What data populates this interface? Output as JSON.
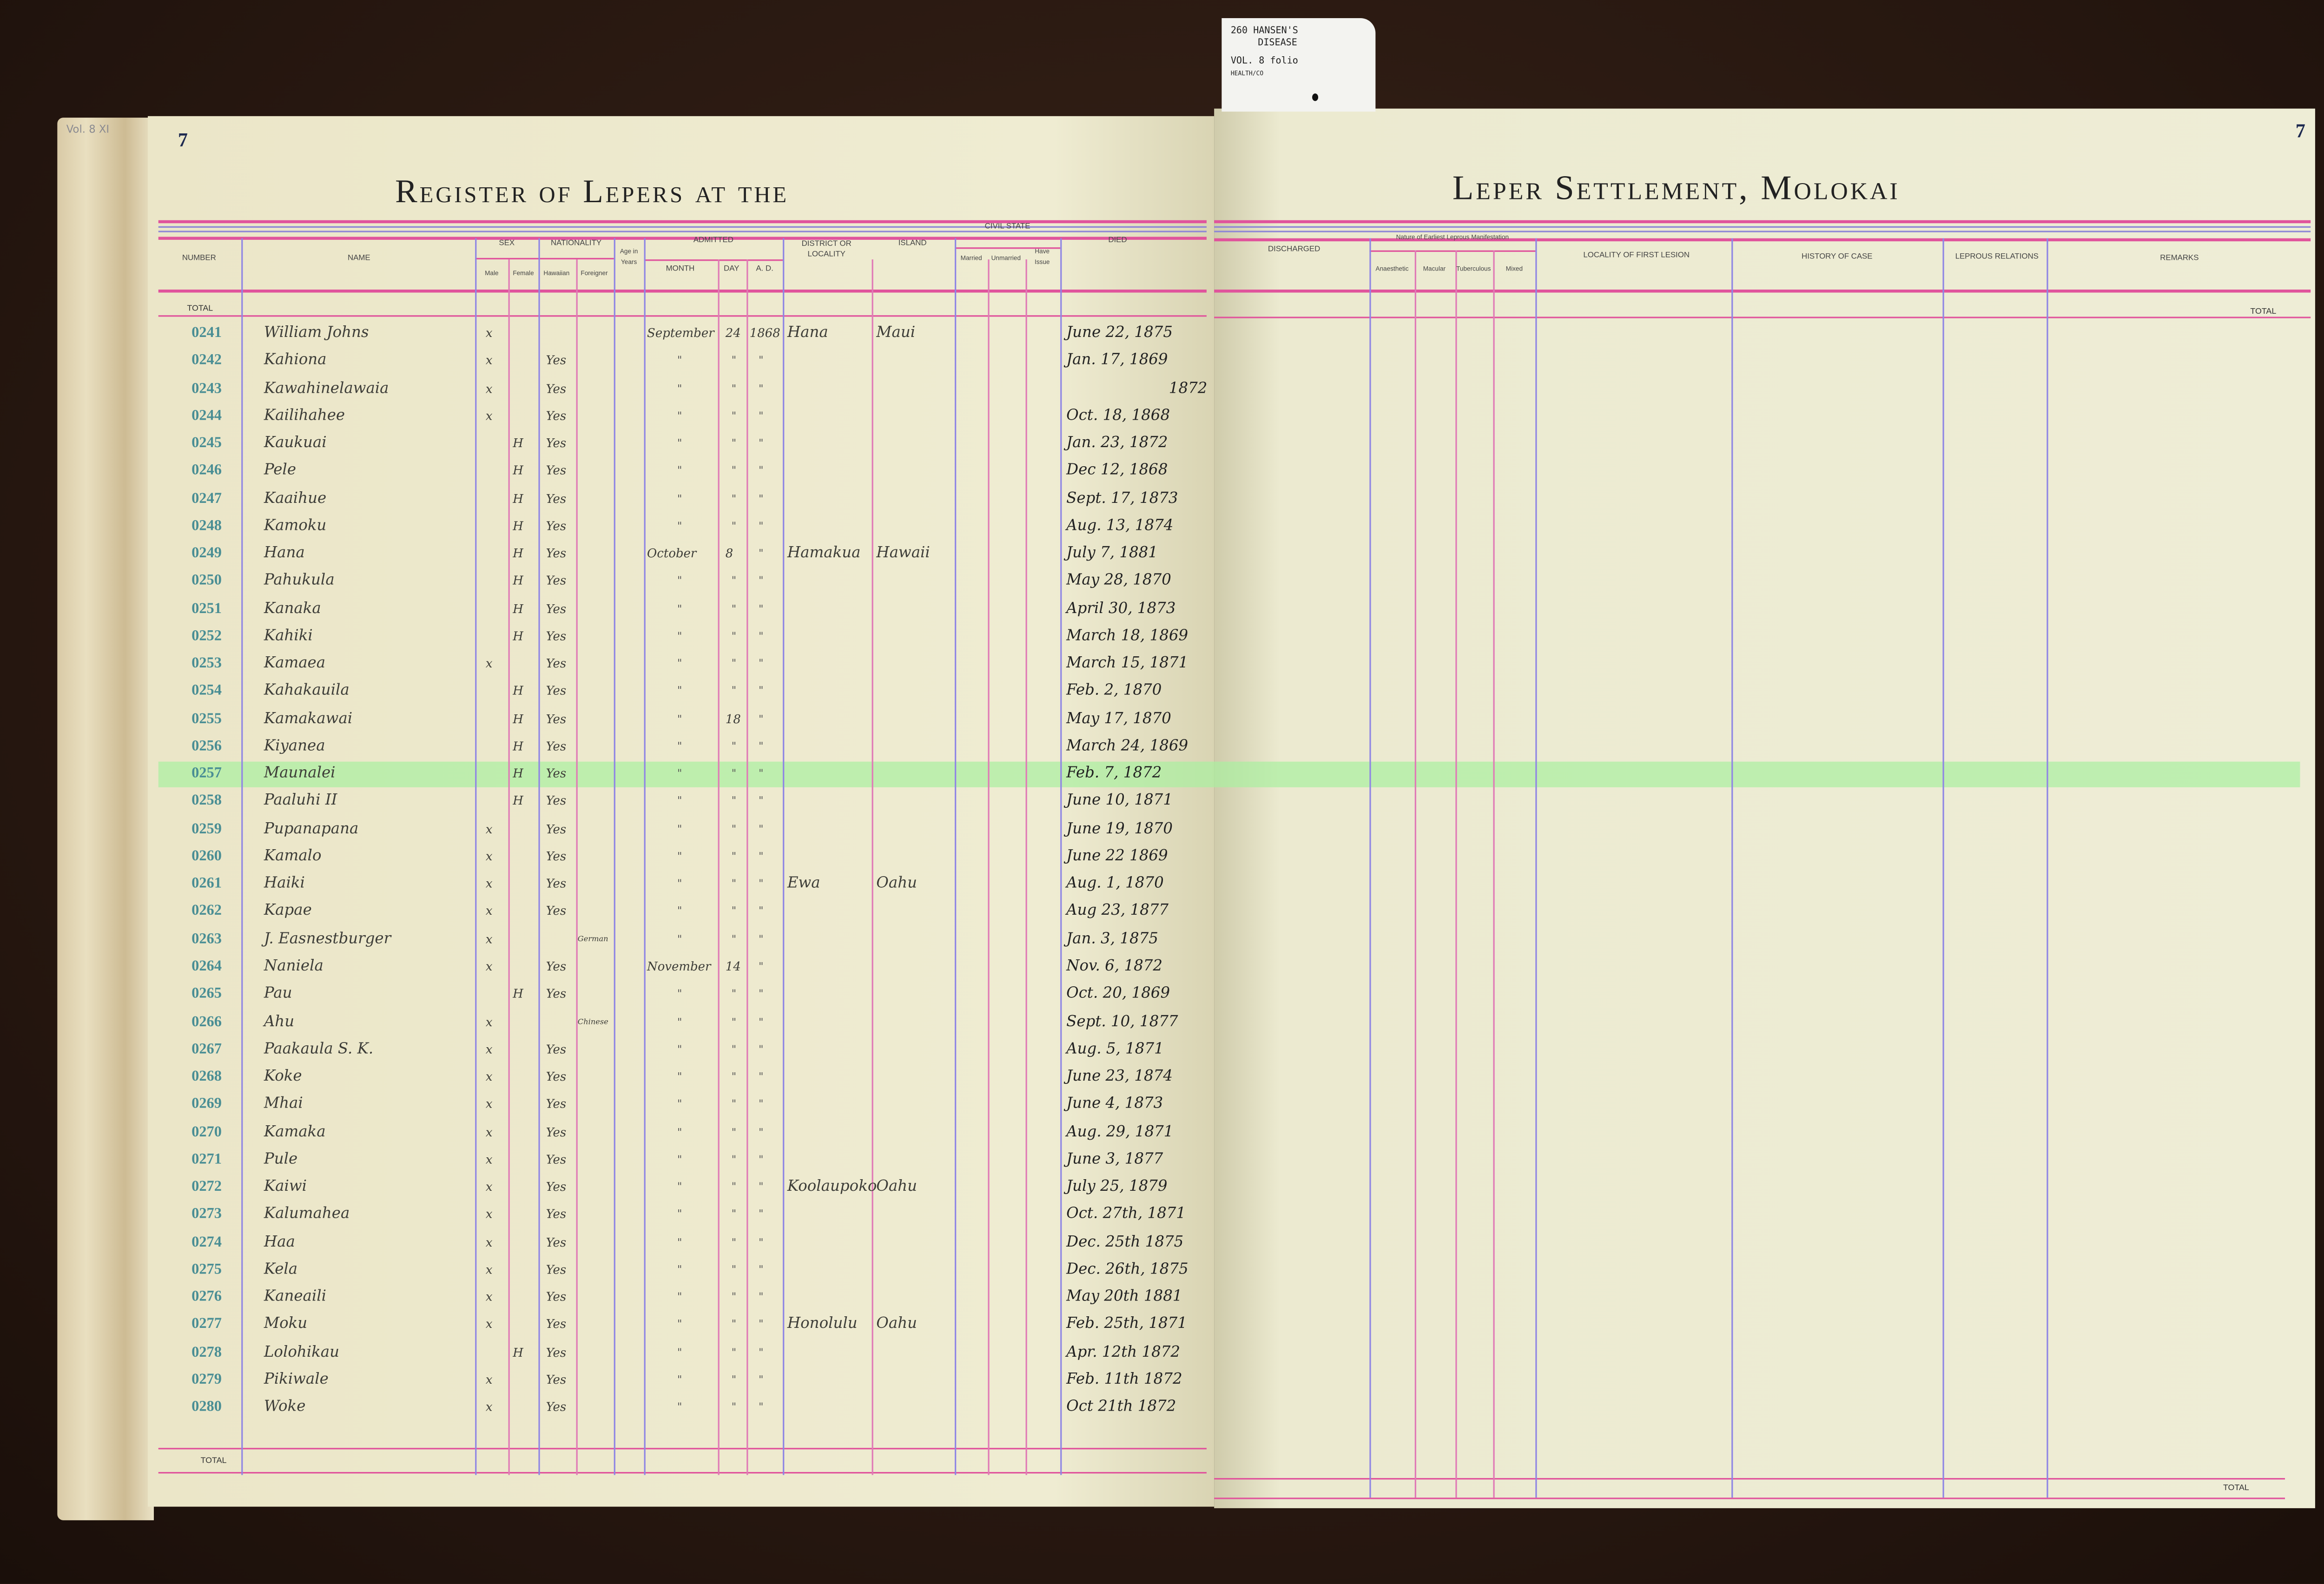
{
  "tab_card": {
    "line1": "260 HANSEN'S",
    "line2": "DISEASE",
    "line3": "VOL. 8 folio",
    "line4": "HEALTH/CO"
  },
  "pencil_note": "Vol. 8 XI",
  "left_page": {
    "page_number": "7",
    "title": "Register of Lepers at the",
    "headers": {
      "number": "Number",
      "name": "Name",
      "sex": "Sex",
      "male": "Male",
      "female": "Female",
      "nationality": "Nationality",
      "hawaiian": "Hawaiian",
      "foreigner": "Foreigner",
      "age": "Age in Years",
      "admitted": "Admitted",
      "month": "Month",
      "day": "Day",
      "ad": "A. D.",
      "district": "District or Locality",
      "island": "Island",
      "civil_state": "Civil State",
      "married": "Married",
      "unmarried": "Unmarried",
      "have_issue": "Have Issue",
      "died": "Died"
    },
    "total_label": "TOTAL",
    "footer_total_label": "TOTAL"
  },
  "right_page": {
    "page_number": "7",
    "title": "Leper Settlement, Molokai",
    "headers": {
      "discharged": "Discharged",
      "nature": "Nature of Earliest Leprous Manifestation",
      "anaesthetic": "Anaesthetic",
      "macular": "Macular",
      "tubercular": "Tuberculous",
      "mixed": "Mixed",
      "locality": "Locality of First Lesion",
      "history": "History of Case",
      "relations": "Leprous Relations",
      "remarks": "Remarks"
    },
    "total_label": "TOTAL",
    "footer_total_label": "TOTAL"
  },
  "highlight_color": "#aaf0a0",
  "highlighted_row": "0257",
  "rows": [
    {
      "number": "0241",
      "name": "William Johns",
      "male": "x",
      "female": "",
      "hawaiian": "",
      "foreigner": "",
      "month": "September",
      "day": "24",
      "ad": "1868",
      "district": "Hana",
      "island": "Maui",
      "died": "June 22, 1875"
    },
    {
      "number": "0242",
      "name": "Kahiona",
      "male": "x",
      "female": "",
      "hawaiian": "Yes",
      "foreigner": "",
      "month": "\"",
      "day": "\"",
      "ad": "\"",
      "district": "",
      "island": "",
      "died": "Jan. 17, 1869"
    },
    {
      "number": "0243",
      "name": "Kawahinelawaia",
      "male": "x",
      "female": "",
      "hawaiian": "Yes",
      "foreigner": "",
      "month": "\"",
      "day": "\"",
      "ad": "\"",
      "district": "",
      "island": "",
      "died": "1872"
    },
    {
      "number": "0244",
      "name": "Kailihahee",
      "male": "x",
      "female": "",
      "hawaiian": "Yes",
      "foreigner": "",
      "month": "\"",
      "day": "\"",
      "ad": "\"",
      "district": "",
      "island": "",
      "died": "Oct. 18, 1868"
    },
    {
      "number": "0245",
      "name": "Kaukuai",
      "male": "",
      "female": "H",
      "hawaiian": "Yes",
      "foreigner": "",
      "month": "\"",
      "day": "\"",
      "ad": "\"",
      "district": "",
      "island": "",
      "died": "Jan. 23, 1872"
    },
    {
      "number": "0246",
      "name": "Pele",
      "male": "",
      "female": "H",
      "hawaiian": "Yes",
      "foreigner": "",
      "month": "\"",
      "day": "\"",
      "ad": "\"",
      "district": "",
      "island": "",
      "died": "Dec 12, 1868"
    },
    {
      "number": "0247",
      "name": "Kaaihue",
      "male": "",
      "female": "H",
      "hawaiian": "Yes",
      "foreigner": "",
      "month": "\"",
      "day": "\"",
      "ad": "\"",
      "district": "",
      "island": "",
      "died": "Sept. 17, 1873"
    },
    {
      "number": "0248",
      "name": "Kamoku",
      "male": "",
      "female": "H",
      "hawaiian": "Yes",
      "foreigner": "",
      "month": "\"",
      "day": "\"",
      "ad": "\"",
      "district": "",
      "island": "",
      "died": "Aug. 13, 1874"
    },
    {
      "number": "0249",
      "name": "Hana",
      "male": "",
      "female": "H",
      "hawaiian": "Yes",
      "foreigner": "",
      "month": "October",
      "day": "8",
      "ad": "\"",
      "district": "Hamakua",
      "island": "Hawaii",
      "died": "July 7, 1881"
    },
    {
      "number": "0250",
      "name": "Pahukula",
      "male": "",
      "female": "H",
      "hawaiian": "Yes",
      "foreigner": "",
      "month": "\"",
      "day": "\"",
      "ad": "\"",
      "district": "",
      "island": "",
      "died": "May 28, 1870"
    },
    {
      "number": "0251",
      "name": "Kanaka",
      "male": "",
      "female": "H",
      "hawaiian": "Yes",
      "foreigner": "",
      "month": "\"",
      "day": "\"",
      "ad": "\"",
      "district": "",
      "island": "",
      "died": "April 30, 1873"
    },
    {
      "number": "0252",
      "name": "Kahiki",
      "male": "",
      "female": "H",
      "hawaiian": "Yes",
      "foreigner": "",
      "month": "\"",
      "day": "\"",
      "ad": "\"",
      "district": "",
      "island": "",
      "died": "March 18, 1869"
    },
    {
      "number": "0253",
      "name": "Kamaea",
      "male": "x",
      "female": "",
      "hawaiian": "Yes",
      "foreigner": "",
      "month": "\"",
      "day": "\"",
      "ad": "\"",
      "district": "",
      "island": "",
      "died": "March 15, 1871"
    },
    {
      "number": "0254",
      "name": "Kahakauila",
      "male": "",
      "female": "H",
      "hawaiian": "Yes",
      "foreigner": "",
      "month": "\"",
      "day": "\"",
      "ad": "\"",
      "district": "",
      "island": "",
      "died": "Feb. 2, 1870"
    },
    {
      "number": "0255",
      "name": "Kamakawai",
      "male": "",
      "female": "H",
      "hawaiian": "Yes",
      "foreigner": "",
      "month": "\"",
      "day": "18",
      "ad": "\"",
      "district": "",
      "island": "",
      "died": "May 17, 1870"
    },
    {
      "number": "0256",
      "name": "Kiyanea",
      "male": "",
      "female": "H",
      "hawaiian": "Yes",
      "foreigner": "",
      "month": "\"",
      "day": "\"",
      "ad": "\"",
      "district": "",
      "island": "",
      "died": "March 24, 1869"
    },
    {
      "number": "0257",
      "name": "Maunalei",
      "male": "",
      "female": "H",
      "hawaiian": "Yes",
      "foreigner": "",
      "month": "\"",
      "day": "\"",
      "ad": "\"",
      "district": "",
      "island": "",
      "died": "Feb. 7, 1872"
    },
    {
      "number": "0258",
      "name": "Paaluhi II",
      "male": "",
      "female": "H",
      "hawaiian": "Yes",
      "foreigner": "",
      "month": "\"",
      "day": "\"",
      "ad": "\"",
      "district": "",
      "island": "",
      "died": "June 10, 1871"
    },
    {
      "number": "0259",
      "name": "Pupanapana",
      "male": "x",
      "female": "",
      "hawaiian": "Yes",
      "foreigner": "",
      "month": "\"",
      "day": "\"",
      "ad": "\"",
      "district": "",
      "island": "",
      "died": "June 19, 1870"
    },
    {
      "number": "0260",
      "name": "Kamalo",
      "male": "x",
      "female": "",
      "hawaiian": "Yes",
      "foreigner": "",
      "month": "\"",
      "day": "\"",
      "ad": "\"",
      "district": "",
      "island": "",
      "died": "June 22 1869"
    },
    {
      "number": "0261",
      "name": "Haiki",
      "male": "x",
      "female": "",
      "hawaiian": "Yes",
      "foreigner": "",
      "month": "\"",
      "day": "\"",
      "ad": "\"",
      "district": "Ewa",
      "island": "Oahu",
      "died": "Aug. 1, 1870"
    },
    {
      "number": "0262",
      "name": "Kapae",
      "male": "x",
      "female": "",
      "hawaiian": "Yes",
      "foreigner": "",
      "month": "\"",
      "day": "\"",
      "ad": "\"",
      "district": "",
      "island": "",
      "died": "Aug 23, 1877"
    },
    {
      "number": "0263",
      "name": "J. Easnestburger",
      "male": "x",
      "female": "",
      "hawaiian": "",
      "foreigner": "German",
      "month": "\"",
      "day": "\"",
      "ad": "\"",
      "district": "",
      "island": "",
      "died": "Jan. 3, 1875"
    },
    {
      "number": "0264",
      "name": "Naniela",
      "male": "x",
      "female": "",
      "hawaiian": "Yes",
      "foreigner": "",
      "month": "November",
      "day": "14",
      "ad": "\"",
      "district": "",
      "island": "",
      "died": "Nov. 6, 1872"
    },
    {
      "number": "0265",
      "name": "Pau",
      "male": "",
      "female": "H",
      "hawaiian": "Yes",
      "foreigner": "",
      "month": "\"",
      "day": "\"",
      "ad": "\"",
      "district": "",
      "island": "",
      "died": "Oct. 20, 1869"
    },
    {
      "number": "0266",
      "name": "Ahu",
      "male": "x",
      "female": "",
      "hawaiian": "",
      "foreigner": "Chinese",
      "month": "\"",
      "day": "\"",
      "ad": "\"",
      "district": "",
      "island": "",
      "died": "Sept. 10, 1877"
    },
    {
      "number": "0267",
      "name": "Paakaula S. K.",
      "male": "x",
      "female": "",
      "hawaiian": "Yes",
      "foreigner": "",
      "month": "\"",
      "day": "\"",
      "ad": "\"",
      "district": "",
      "island": "",
      "died": "Aug. 5, 1871"
    },
    {
      "number": "0268",
      "name": "Koke",
      "male": "x",
      "female": "",
      "hawaiian": "Yes",
      "foreigner": "",
      "month": "\"",
      "day": "\"",
      "ad": "\"",
      "district": "",
      "island": "",
      "died": "June 23, 1874"
    },
    {
      "number": "0269",
      "name": "Mhai",
      "male": "x",
      "female": "",
      "hawaiian": "Yes",
      "foreigner": "",
      "month": "\"",
      "day": "\"",
      "ad": "\"",
      "district": "",
      "island": "",
      "died": "June 4, 1873"
    },
    {
      "number": "0270",
      "name": "Kamaka",
      "male": "x",
      "female": "",
      "hawaiian": "Yes",
      "foreigner": "",
      "month": "\"",
      "day": "\"",
      "ad": "\"",
      "district": "",
      "island": "",
      "died": "Aug. 29, 1871"
    },
    {
      "number": "0271",
      "name": "Pule",
      "male": "x",
      "female": "",
      "hawaiian": "Yes",
      "foreigner": "",
      "month": "\"",
      "day": "\"",
      "ad": "\"",
      "district": "",
      "island": "",
      "died": "June 3, 1877"
    },
    {
      "number": "0272",
      "name": "Kaiwi",
      "male": "x",
      "female": "",
      "hawaiian": "Yes",
      "foreigner": "",
      "month": "\"",
      "day": "\"",
      "ad": "\"",
      "district": "Koolaupoko",
      "island": "Oahu",
      "died": "July 25, 1879"
    },
    {
      "number": "0273",
      "name": "Kalumahea",
      "male": "x",
      "female": "",
      "hawaiian": "Yes",
      "foreigner": "",
      "month": "\"",
      "day": "\"",
      "ad": "\"",
      "district": "",
      "island": "",
      "died": "Oct. 27th, 1871"
    },
    {
      "number": "0274",
      "name": "Haa",
      "male": "x",
      "female": "",
      "hawaiian": "Yes",
      "foreigner": "",
      "month": "\"",
      "day": "\"",
      "ad": "\"",
      "district": "",
      "island": "",
      "died": "Dec. 25th 1875"
    },
    {
      "number": "0275",
      "name": "Kela",
      "male": "x",
      "female": "",
      "hawaiian": "Yes",
      "foreigner": "",
      "month": "\"",
      "day": "\"",
      "ad": "\"",
      "district": "",
      "island": "",
      "died": "Dec. 26th, 1875"
    },
    {
      "number": "0276",
      "name": "Kaneaili",
      "male": "x",
      "female": "",
      "hawaiian": "Yes",
      "foreigner": "",
      "month": "\"",
      "day": "\"",
      "ad": "\"",
      "district": "",
      "island": "",
      "died": "May 20th 1881"
    },
    {
      "number": "0277",
      "name": "Moku",
      "male": "x",
      "female": "",
      "hawaiian": "Yes",
      "foreigner": "",
      "month": "\"",
      "day": "\"",
      "ad": "\"",
      "district": "Honolulu",
      "island": "Oahu",
      "died": "Feb. 25th, 1871"
    },
    {
      "number": "0278",
      "name": "Lolohikau",
      "male": "",
      "female": "H",
      "hawaiian": "Yes",
      "foreigner": "",
      "month": "\"",
      "day": "\"",
      "ad": "\"",
      "district": "",
      "island": "",
      "died": "Apr. 12th 1872"
    },
    {
      "number": "0279",
      "name": "Pikiwale",
      "male": "x",
      "female": "",
      "hawaiian": "Yes",
      "foreigner": "",
      "month": "\"",
      "day": "\"",
      "ad": "\"",
      "district": "",
      "island": "",
      "died": "Feb. 11th 1872"
    },
    {
      "number": "0280",
      "name": "Woke",
      "male": "x",
      "female": "",
      "hawaiian": "Yes",
      "foreigner": "",
      "month": "\"",
      "day": "\"",
      "ad": "\"",
      "district": "",
      "island": "",
      "died": "Oct 21th 1872"
    }
  ]
}
